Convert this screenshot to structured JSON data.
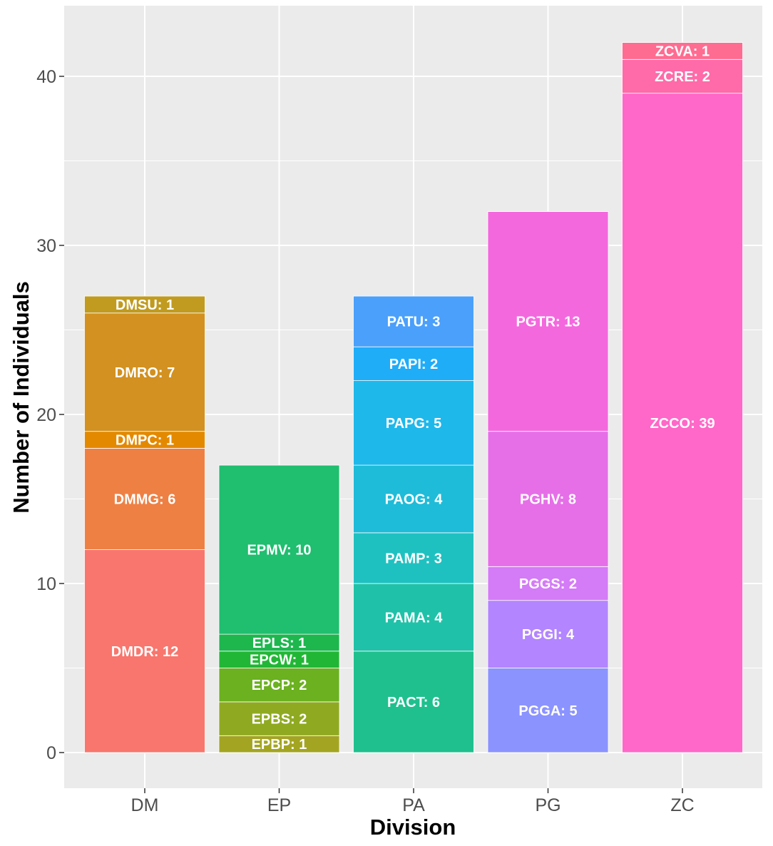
{
  "chart_data": {
    "type": "bar",
    "stacked": true,
    "title": "",
    "xlabel": "Division",
    "ylabel": "Number of Individuals",
    "ylim": [
      -2,
      44
    ],
    "yticks": [
      0,
      10,
      20,
      30,
      40
    ],
    "grid": true,
    "legend": "none",
    "categories": [
      "DM",
      "EP",
      "PA",
      "PG",
      "ZC"
    ],
    "stacks": [
      {
        "category": "DM",
        "segments": [
          {
            "label": "DMDR: 12",
            "value": 12,
            "color": "#F8766D"
          },
          {
            "label": "DMMG: 6",
            "value": 6,
            "color": "#EE8044"
          },
          {
            "label": "DMPC: 1",
            "value": 1,
            "color": "#E38900"
          },
          {
            "label": "DMRO: 7",
            "value": 7,
            "color": "#D29120"
          },
          {
            "label": "DMSU: 1",
            "value": 1,
            "color": "#C09B1F"
          }
        ]
      },
      {
        "category": "EP",
        "segments": [
          {
            "label": "EPBP: 1",
            "value": 1,
            "color": "#A3A522"
          },
          {
            "label": "EPBS: 2",
            "value": 2,
            "color": "#8FAA21"
          },
          {
            "label": "EPCP: 2",
            "value": 2,
            "color": "#6BB120"
          },
          {
            "label": "EPCW: 1",
            "value": 1,
            "color": "#22B636"
          },
          {
            "label": "EPLS: 1",
            "value": 1,
            "color": "#1DB74E"
          },
          {
            "label": "EPMV: 10",
            "value": 10,
            "color": "#20BE6F"
          }
        ]
      },
      {
        "category": "PA",
        "segments": [
          {
            "label": "PACT: 6",
            "value": 6,
            "color": "#1FC08E"
          },
          {
            "label": "PAMA: 4",
            "value": 4,
            "color": "#1FC2A8"
          },
          {
            "label": "PAMP: 3",
            "value": 3,
            "color": "#1FC1C0"
          },
          {
            "label": "PAOG: 4",
            "value": 4,
            "color": "#1EBCD8"
          },
          {
            "label": "PAPG: 5",
            "value": 5,
            "color": "#1EB8EB"
          },
          {
            "label": "PAPI: 2",
            "value": 2,
            "color": "#1FADF8"
          },
          {
            "label": "PATU: 3",
            "value": 3,
            "color": "#4AA0FB"
          }
        ]
      },
      {
        "category": "PG",
        "segments": [
          {
            "label": "PGGA: 5",
            "value": 5,
            "color": "#8B93FF"
          },
          {
            "label": "PGGI: 4",
            "value": 4,
            "color": "#B385FF"
          },
          {
            "label": "PGGS: 2",
            "value": 2,
            "color": "#D47BF7"
          },
          {
            "label": "PGHV: 8",
            "value": 8,
            "color": "#E66FE8"
          },
          {
            "label": "PGTR: 13",
            "value": 13,
            "color": "#F468DE"
          }
        ]
      },
      {
        "category": "ZC",
        "segments": [
          {
            "label": "ZCCO: 39",
            "value": 39,
            "color": "#FF67C8"
          },
          {
            "label": "ZCRE: 2",
            "value": 2,
            "color": "#FF6AA8"
          },
          {
            "label": "ZCVA: 1",
            "value": 1,
            "color": "#FF6C91"
          }
        ]
      }
    ]
  }
}
